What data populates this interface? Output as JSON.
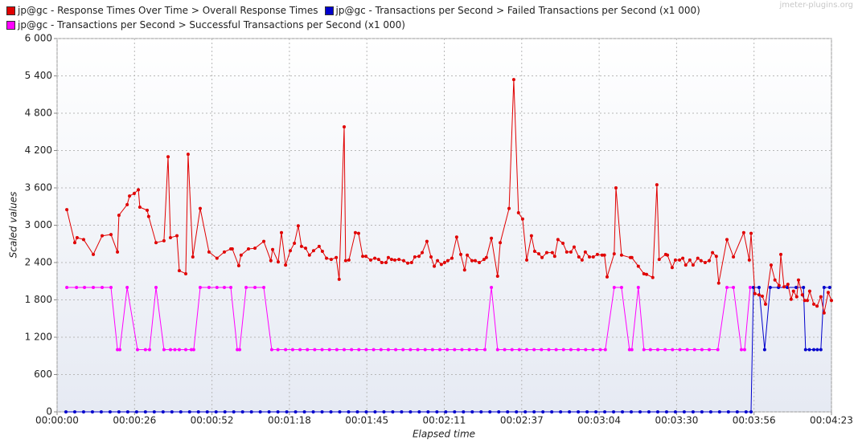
{
  "chart_data": {
    "type": "line",
    "watermark": "jmeter-plugins.org",
    "xlabel": "Elapsed time",
    "ylabel": "Scaled values",
    "xlim": [
      0,
      263
    ],
    "ylim": [
      0,
      6000
    ],
    "xticks": [
      {
        "value": 0,
        "label": "00:00:00"
      },
      {
        "value": 26.3,
        "label": "00:00:26"
      },
      {
        "value": 52.6,
        "label": "00:00:52"
      },
      {
        "value": 78.9,
        "label": "00:01:18"
      },
      {
        "value": 105.2,
        "label": "00:01:45"
      },
      {
        "value": 131.5,
        "label": "00:02:11"
      },
      {
        "value": 157.8,
        "label": "00:02:37"
      },
      {
        "value": 184.1,
        "label": "00:03:04"
      },
      {
        "value": 210.4,
        "label": "00:03:30"
      },
      {
        "value": 236.7,
        "label": "00:03:56"
      },
      {
        "value": 263,
        "label": "00:04:23"
      }
    ],
    "yticks": [
      0,
      600,
      {
        "value": 1200,
        "label": "1 200"
      },
      {
        "value": 1800,
        "label": "1 800"
      },
      {
        "value": 2400,
        "label": "2 400"
      },
      {
        "value": 3000,
        "label": "3 000"
      },
      {
        "value": 3600,
        "label": "3 600"
      },
      {
        "value": 4200,
        "label": "4 200"
      },
      {
        "value": 4800,
        "label": "4 800"
      },
      {
        "value": 5400,
        "label": "5 400"
      },
      {
        "value": 6000,
        "label": "6 000"
      }
    ],
    "grid": true,
    "series": [
      {
        "name": "jp@gc - Response Times Over Time > Overall Response Times",
        "color": "#e00000",
        "x": [
          3.3,
          6.0,
          6.8,
          9.0,
          12.3,
          15.3,
          18.3,
          20.5,
          21.0,
          23.8,
          24.6,
          26.2,
          27.6,
          28.1,
          30.6,
          31.1,
          33.6,
          36.3,
          37.7,
          38.5,
          40.7,
          41.5,
          43.7,
          44.5,
          46.1,
          48.6,
          51.6,
          54.3,
          56.8,
          59.0,
          59.5,
          61.7,
          62.5,
          65.0,
          67.2,
          70.2,
          72.6,
          73.2,
          75.1,
          76.2,
          77.6,
          79.2,
          80.6,
          81.9,
          83.0,
          84.4,
          85.7,
          87.1,
          89.0,
          90.1,
          91.5,
          93.1,
          94.8,
          95.8,
          97.5,
          98.0,
          99.1,
          101.3,
          102.4,
          103.8,
          104.9,
          106.5,
          107.9,
          109.2,
          110.3,
          111.7,
          112.5,
          113.6,
          114.7,
          116.1,
          117.7,
          119.1,
          120.4,
          121.5,
          122.9,
          124.0,
          125.6,
          127.0,
          128.1,
          129.2,
          130.5,
          131.6,
          132.7,
          134.1,
          135.7,
          137.1,
          138.4,
          139.3,
          140.9,
          142.0,
          143.4,
          145.0,
          145.8,
          147.5,
          149.6,
          150.5,
          153.5,
          155.1,
          156.7,
          158.1,
          159.5,
          161.1,
          162.2,
          163.6,
          164.7,
          166.3,
          168.2,
          169.0,
          170.1,
          171.8,
          173.1,
          174.5,
          175.6,
          177.2,
          178.3,
          179.4,
          180.8,
          182.1,
          183.5,
          185.1,
          185.9,
          186.8,
          189.2,
          189.8,
          191.7,
          194.7,
          195.2,
          197.4,
          199.3,
          200.2,
          202.3,
          203.7,
          204.5,
          206.7,
          207.3,
          208.9,
          210.0,
          211.4,
          212.5,
          213.5,
          214.9,
          216.0,
          217.6,
          218.7,
          220.1,
          221.5,
          222.6,
          223.9,
          224.7,
          227.5,
          229.7,
          233.2,
          235.1,
          235.7,
          237.0,
          238.4,
          239.5,
          240.6,
          242.5,
          243.8,
          245.2,
          245.8,
          246.9,
          248.2,
          249.3,
          250.1,
          251.2,
          251.8,
          253.1,
          253.9,
          254.8,
          255.6,
          257.0,
          258.1,
          259.4,
          260.5,
          261.9,
          263.0
        ],
        "values": [
          3250,
          2720,
          2800,
          2770,
          2530,
          2830,
          2850,
          2570,
          3160,
          3330,
          3470,
          3510,
          3570,
          3290,
          3240,
          3140,
          2720,
          2750,
          4100,
          2800,
          2830,
          2270,
          2220,
          4140,
          2490,
          3270,
          2570,
          2470,
          2570,
          2620,
          2620,
          2350,
          2520,
          2620,
          2630,
          2740,
          2430,
          2610,
          2410,
          2880,
          2360,
          2590,
          2710,
          2990,
          2660,
          2630,
          2520,
          2590,
          2660,
          2580,
          2470,
          2450,
          2480,
          2130,
          4580,
          2430,
          2440,
          2880,
          2870,
          2500,
          2500,
          2440,
          2470,
          2450,
          2400,
          2400,
          2480,
          2450,
          2440,
          2450,
          2430,
          2390,
          2400,
          2490,
          2500,
          2560,
          2740,
          2490,
          2340,
          2430,
          2370,
          2400,
          2430,
          2470,
          2810,
          2530,
          2280,
          2520,
          2430,
          2430,
          2400,
          2450,
          2480,
          2790,
          2180,
          2720,
          3270,
          5340,
          3200,
          3100,
          2440,
          2830,
          2580,
          2540,
          2480,
          2560,
          2560,
          2500,
          2770,
          2710,
          2570,
          2570,
          2650,
          2490,
          2440,
          2570,
          2490,
          2490,
          2530,
          2520,
          2520,
          2170,
          2540,
          3600,
          2520,
          2480,
          2480,
          2340,
          2220,
          2210,
          2160,
          3650,
          2450,
          2530,
          2520,
          2320,
          2440,
          2440,
          2470,
          2360,
          2440,
          2360,
          2470,
          2430,
          2400,
          2430,
          2560,
          2500,
          2070,
          2770,
          2490,
          2880,
          2440,
          2870,
          1900,
          1880,
          1860,
          1730,
          2360,
          2120,
          2030,
          2530,
          2010,
          2050,
          1810,
          1940,
          1850,
          2120,
          1880,
          1790,
          1790,
          1940,
          1730,
          1700,
          1850,
          1590,
          1920,
          1790
        ]
      },
      {
        "name": "jp@gc - Transactions per Second > Failed Transactions per Second (x1 000)",
        "color": "#0000cc",
        "x": [
          3,
          6,
          9,
          12,
          15,
          18,
          21,
          24,
          27,
          30,
          33,
          36,
          39,
          42,
          45,
          48,
          51,
          54,
          57,
          60,
          63,
          66,
          69,
          72,
          75,
          78,
          81,
          84,
          87,
          90,
          93,
          96,
          99,
          102,
          105,
          108,
          111,
          114,
          117,
          120,
          123,
          126,
          129,
          132,
          135,
          138,
          141,
          144,
          147,
          150,
          153,
          156,
          159,
          162,
          165,
          168,
          171,
          174,
          177,
          180,
          183,
          186,
          189,
          192,
          195,
          198,
          201,
          204,
          207,
          210,
          213,
          216,
          219,
          222,
          225,
          228,
          231,
          234,
          235.7,
          236.5,
          238.4,
          240.3,
          242.2,
          245.0,
          248.0,
          251.0,
          253.5,
          254.2,
          255.5,
          257.0,
          258.2,
          259.4,
          260.5,
          262.4
        ],
        "values": [
          0,
          0,
          0,
          0,
          0,
          0,
          0,
          0,
          0,
          0,
          0,
          0,
          0,
          0,
          0,
          0,
          0,
          0,
          0,
          0,
          0,
          0,
          0,
          0,
          0,
          0,
          0,
          0,
          0,
          0,
          0,
          0,
          0,
          0,
          0,
          0,
          0,
          0,
          0,
          0,
          0,
          0,
          0,
          0,
          0,
          0,
          0,
          0,
          0,
          0,
          0,
          0,
          0,
          0,
          0,
          0,
          0,
          0,
          0,
          0,
          0,
          0,
          0,
          0,
          0,
          0,
          0,
          0,
          0,
          0,
          0,
          0,
          0,
          0,
          0,
          0,
          0,
          0,
          0,
          2000,
          2000,
          1000,
          2000,
          2000,
          2000,
          2000,
          2000,
          1000,
          1000,
          1000,
          1000,
          1000,
          2000,
          2000
        ]
      },
      {
        "name": "jp@gc - Transactions per Second > Successful Transactions per Second (x1 000)",
        "color": "#ff00ff",
        "x": [
          3.3,
          6.6,
          9.3,
          12.3,
          15.3,
          18.3,
          20.5,
          21.3,
          23.8,
          27.3,
          30.0,
          31.4,
          33.6,
          36.3,
          38.5,
          40.0,
          41.5,
          43.7,
          45.6,
          46.4,
          48.6,
          51.6,
          54.3,
          56.8,
          59.0,
          61.2,
          62.0,
          64.2,
          67.2,
          70.2,
          72.9,
          75.0,
          77.6,
          80.0,
          82.5,
          85.0,
          87.5,
          90.0,
          92.5,
          95.0,
          97.5,
          100.0,
          102.5,
          105.0,
          107.5,
          110.0,
          112.5,
          115.0,
          117.5,
          120.0,
          122.5,
          125.0,
          127.5,
          130.0,
          132.5,
          135.0,
          137.5,
          140.0,
          142.5,
          145.3,
          147.5,
          149.6,
          152.0,
          154.5,
          157.0,
          159.5,
          162.0,
          164.5,
          167.0,
          169.5,
          172.0,
          174.5,
          177.0,
          179.5,
          182.0,
          184.5,
          186.2,
          189.2,
          191.7,
          194.4,
          195.2,
          197.4,
          199.3,
          201.5,
          204.0,
          206.5,
          209.0,
          211.5,
          214.0,
          216.5,
          219.0,
          221.5,
          224.4,
          227.5,
          229.7,
          232.4,
          233.5,
          235.4
        ],
        "values": [
          2000,
          2000,
          2000,
          2000,
          2000,
          2000,
          1000,
          1000,
          2000,
          1000,
          1000,
          1000,
          2000,
          1000,
          1000,
          1000,
          1000,
          1000,
          1000,
          1000,
          2000,
          2000,
          2000,
          2000,
          2000,
          1000,
          1000,
          2000,
          2000,
          2000,
          1000,
          1000,
          1000,
          1000,
          1000,
          1000,
          1000,
          1000,
          1000,
          1000,
          1000,
          1000,
          1000,
          1000,
          1000,
          1000,
          1000,
          1000,
          1000,
          1000,
          1000,
          1000,
          1000,
          1000,
          1000,
          1000,
          1000,
          1000,
          1000,
          1000,
          2000,
          1000,
          1000,
          1000,
          1000,
          1000,
          1000,
          1000,
          1000,
          1000,
          1000,
          1000,
          1000,
          1000,
          1000,
          1000,
          1000,
          2000,
          2000,
          1000,
          1000,
          2000,
          1000,
          1000,
          1000,
          1000,
          1000,
          1000,
          1000,
          1000,
          1000,
          1000,
          1000,
          2000,
          2000,
          1000,
          1000,
          2000
        ]
      }
    ]
  }
}
